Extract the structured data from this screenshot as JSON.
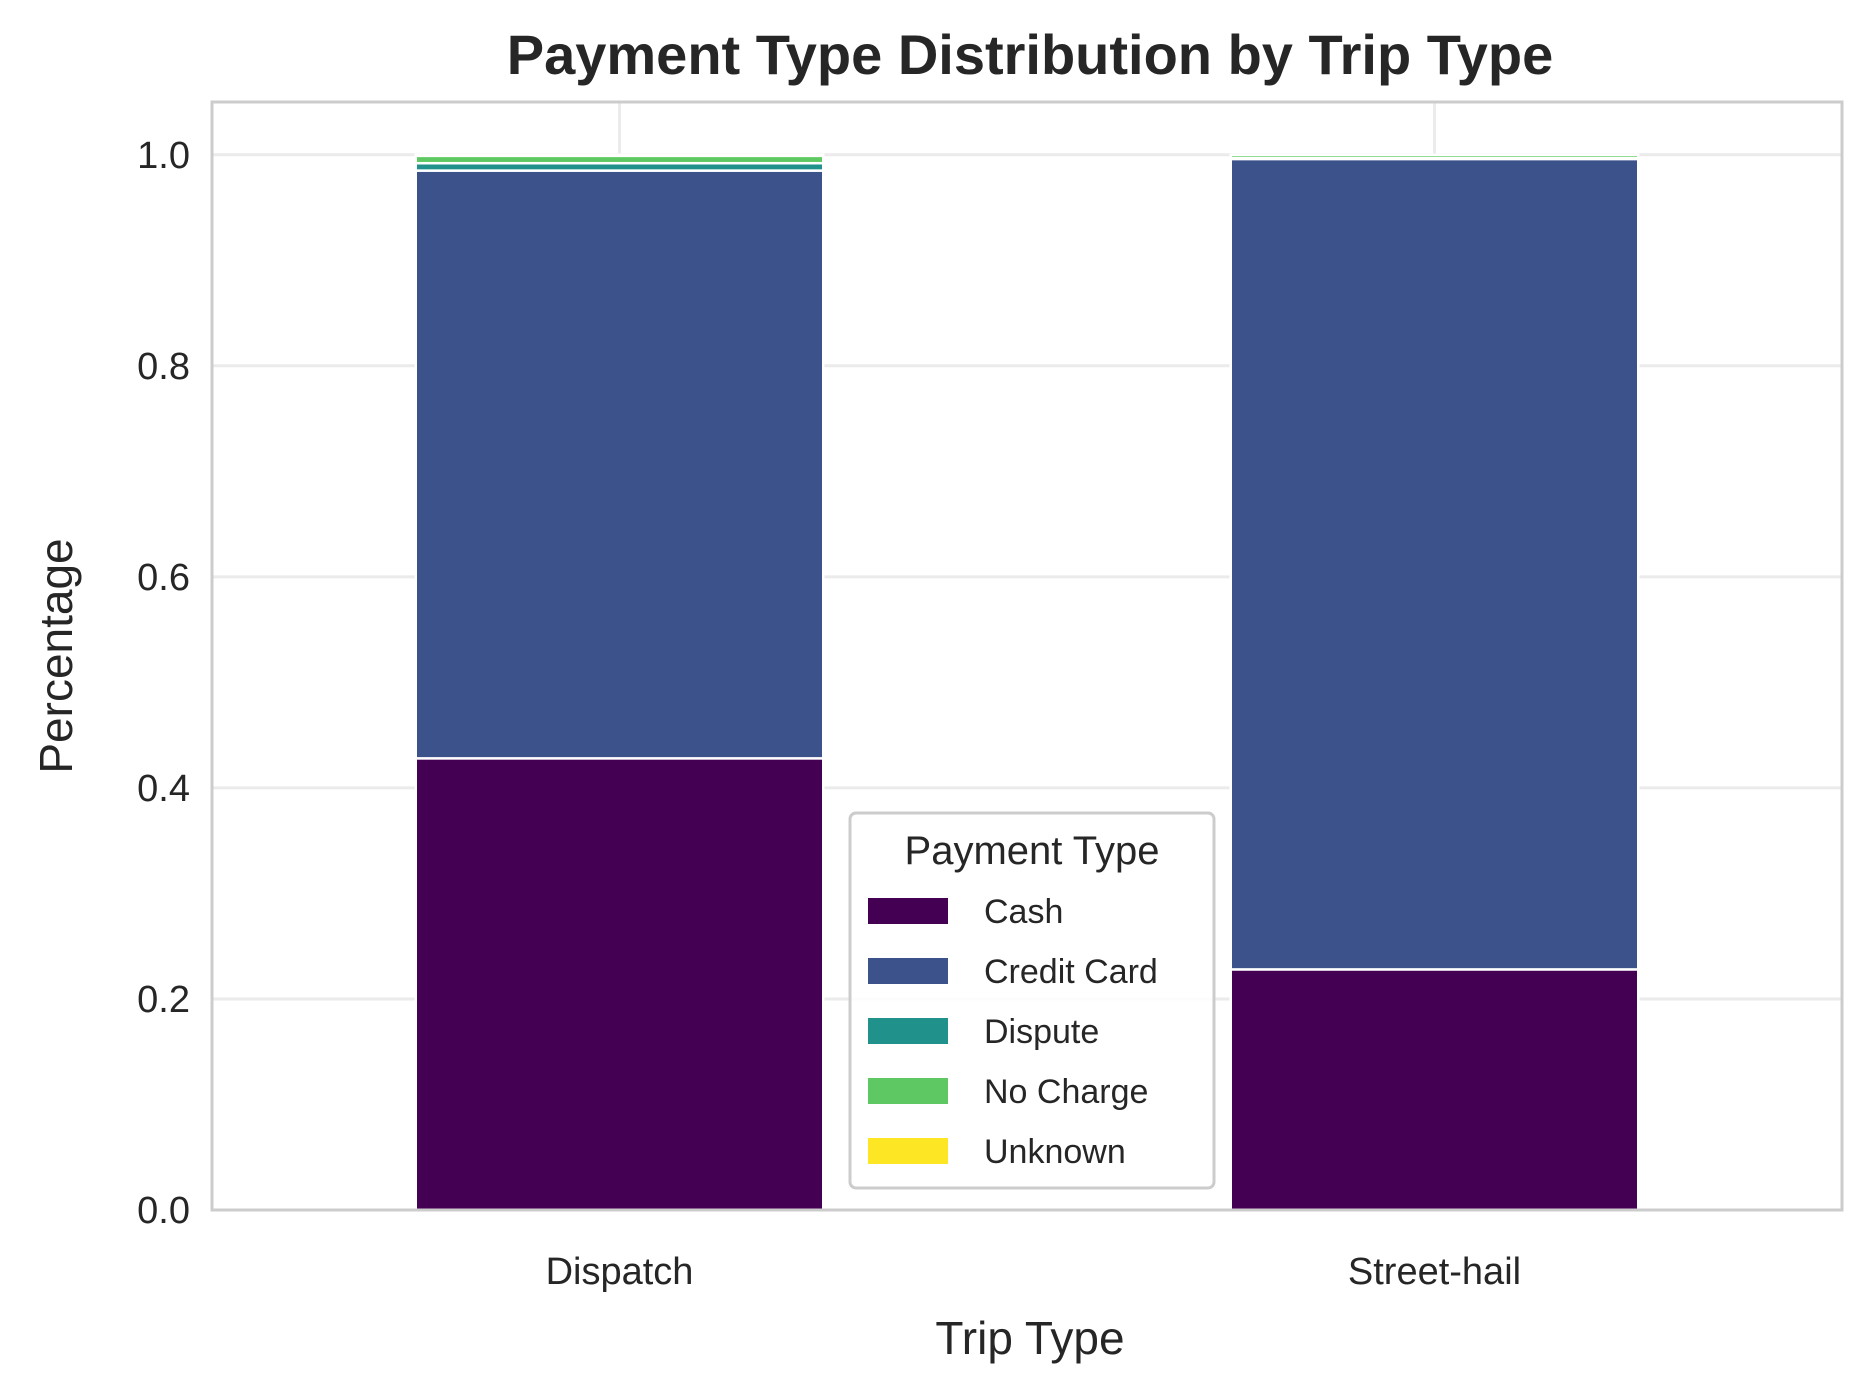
{
  "chart_data": {
    "type": "bar",
    "stacked": true,
    "title": "Payment Type Distribution by Trip Type",
    "xlabel": "Trip Type",
    "ylabel": "Percentage",
    "categories": [
      "Dispatch",
      "Street-hail"
    ],
    "ylim": [
      0,
      1.05
    ],
    "yticks": [
      "0.0",
      "0.2",
      "0.4",
      "0.6",
      "0.8",
      "1.0"
    ],
    "ytick_values": [
      0,
      0.2,
      0.4,
      0.6,
      0.8,
      1.0
    ],
    "grid": true,
    "legend": {
      "title": "Payment Type",
      "placement": "lower center"
    },
    "series": [
      {
        "name": "Cash",
        "color": "#440154",
        "values": [
          0.428,
          0.228
        ]
      },
      {
        "name": "Credit Card",
        "color": "#3b528b",
        "values": [
          0.557,
          0.768
        ]
      },
      {
        "name": "Dispute",
        "color": "#21918c",
        "values": [
          0.007,
          0.001
        ]
      },
      {
        "name": "No Charge",
        "color": "#5ec962",
        "values": [
          0.007,
          0.003
        ]
      },
      {
        "name": "Unknown",
        "color": "#fde725",
        "values": [
          0.001,
          0.0
        ]
      }
    ]
  }
}
